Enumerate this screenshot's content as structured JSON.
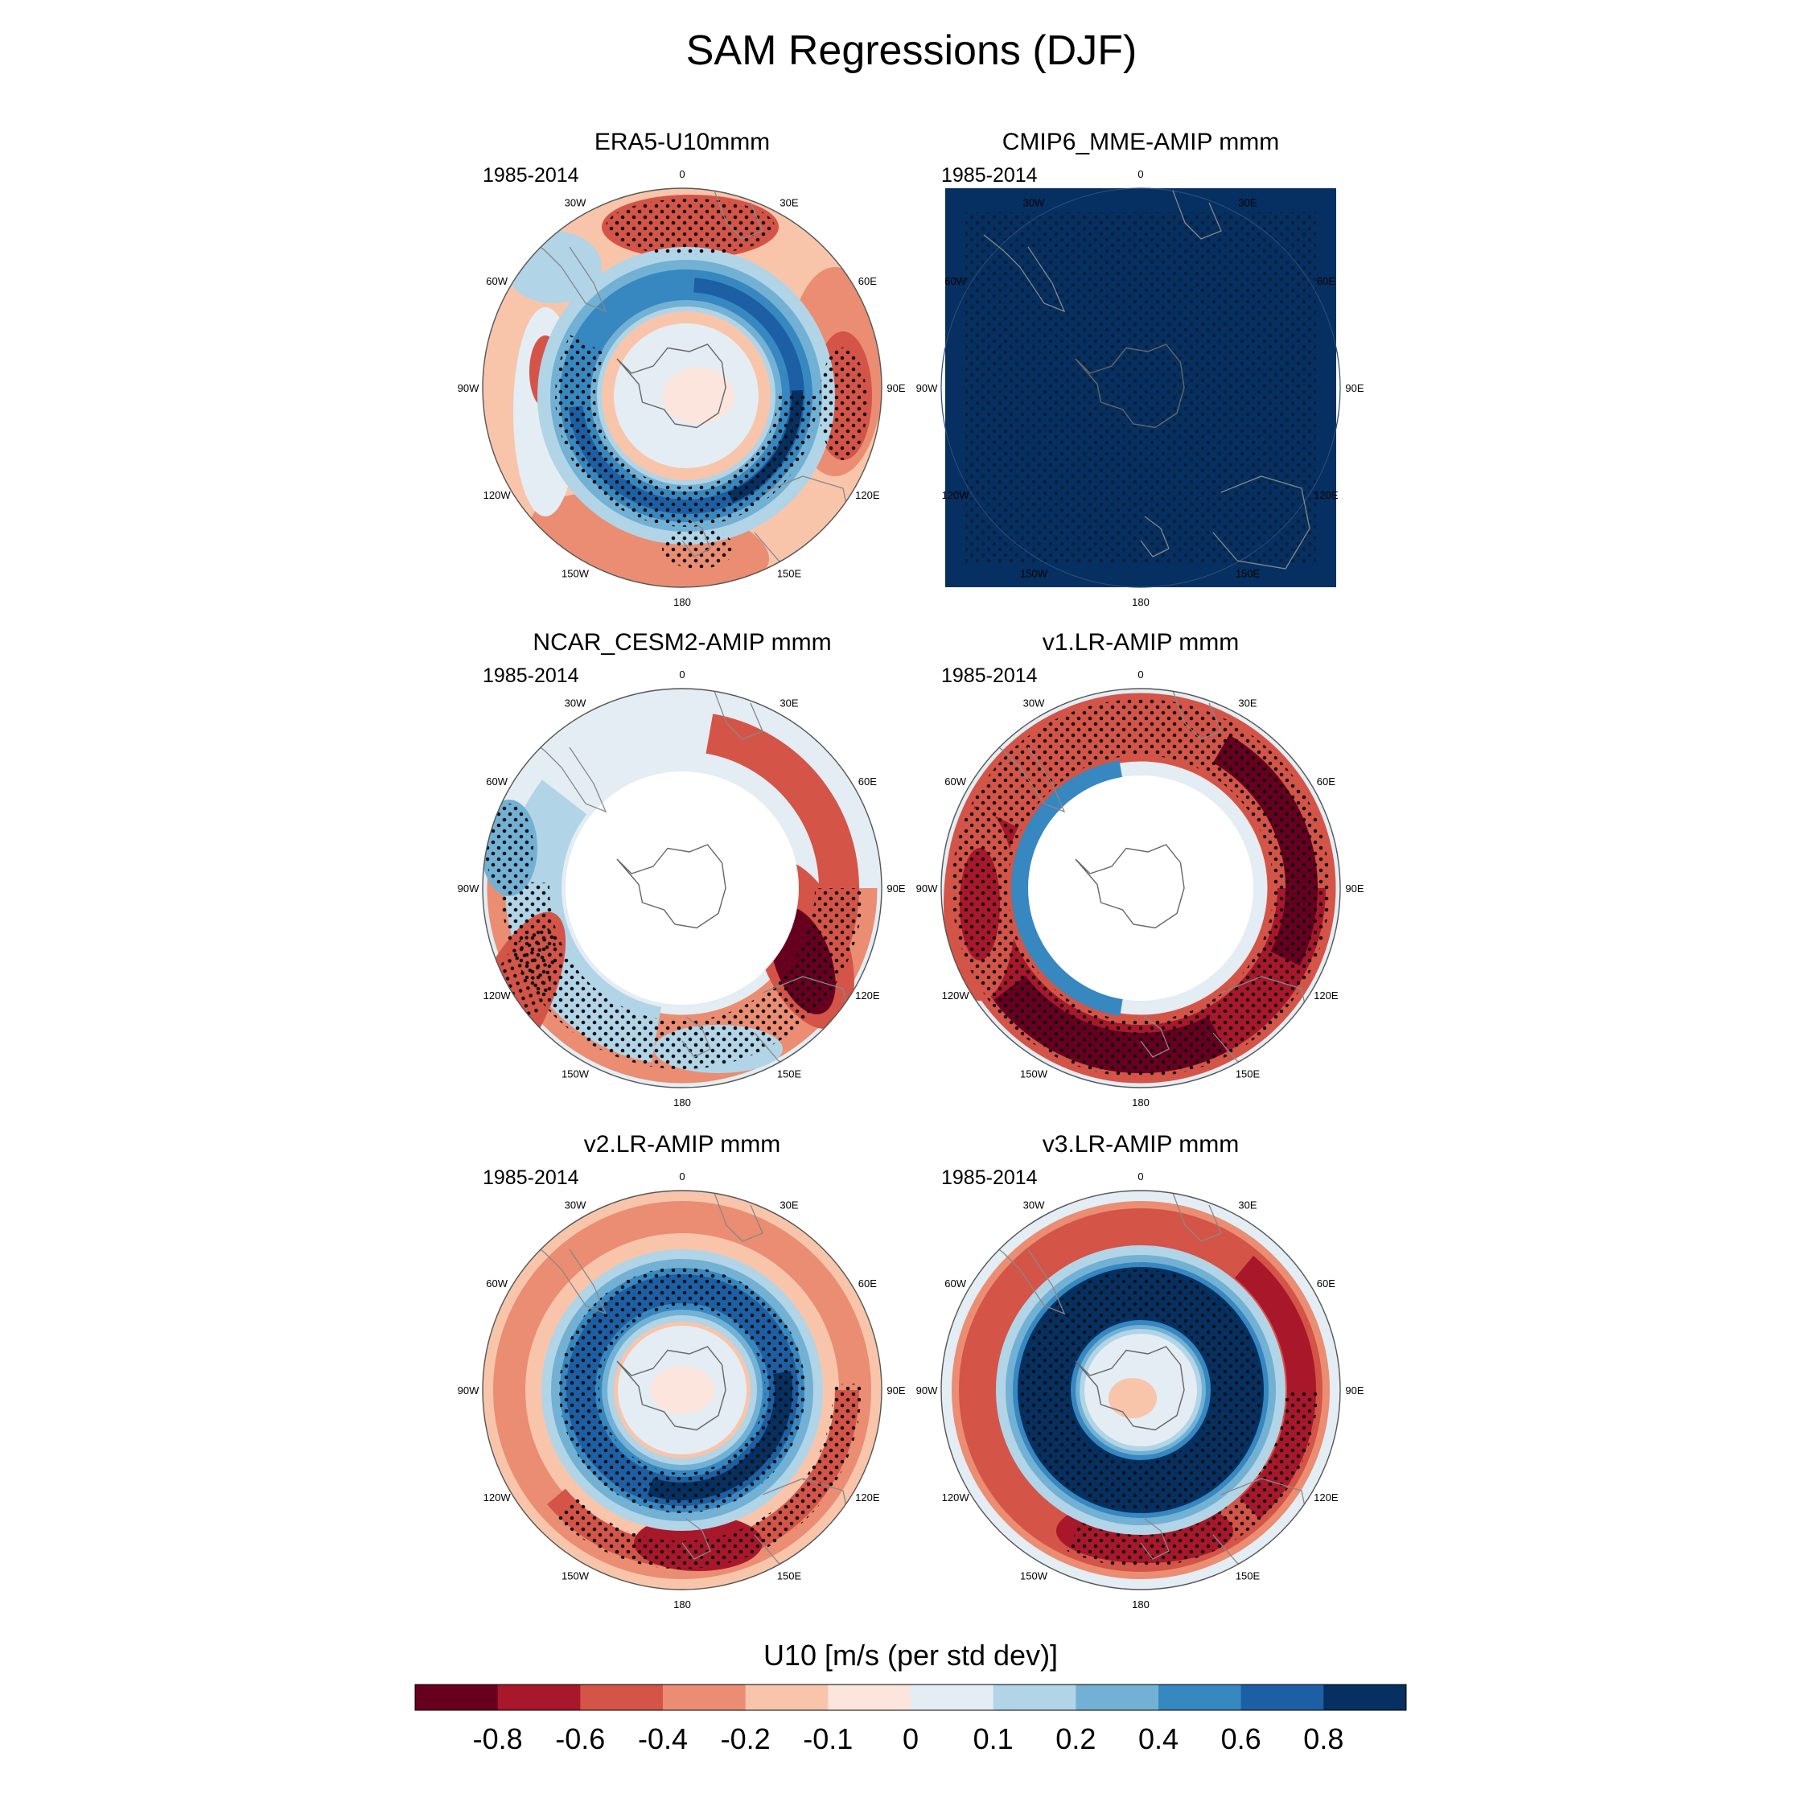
{
  "figure": {
    "title": "SAM Regressions (DJF)",
    "axis_labels": [
      "0",
      "30E",
      "60E",
      "90E",
      "120E",
      "150E",
      "180",
      "150W",
      "120W",
      "90W",
      "60W",
      "30W"
    ]
  },
  "panels": [
    {
      "title": "ERA5-U10mmm",
      "period": "1985-2014",
      "style": "era5"
    },
    {
      "title": "CMIP6_MME-AMIP  mmm",
      "period": "1985-2014",
      "style": "cmip6"
    },
    {
      "title": "NCAR_CESM2-AMIP  mmm",
      "period": "1985-2014",
      "style": "cesm2"
    },
    {
      "title": "v1.LR-AMIP  mmm",
      "period": "1985-2014",
      "style": "v1"
    },
    {
      "title": "v2.LR-AMIP  mmm",
      "period": "1985-2014",
      "style": "v2"
    },
    {
      "title": "v3.LR-AMIP  mmm",
      "period": "1985-2014",
      "style": "v3"
    }
  ],
  "colorbar": {
    "title": "U10 [m/s (per std dev)]",
    "tick_labels": [
      "-0.8",
      "-0.6",
      "-0.4",
      "-0.2",
      "-0.1",
      "0",
      "0.1",
      "0.2",
      "0.4",
      "0.6",
      "0.8"
    ],
    "colors": [
      "#67001f",
      "#a9172b",
      "#d45447",
      "#ea8d72",
      "#f8c5ab",
      "#fbe5dc",
      "#e3edf3",
      "#b1d4e7",
      "#72b1d4",
      "#3787c0",
      "#1c5fa5",
      "#053061"
    ]
  }
}
